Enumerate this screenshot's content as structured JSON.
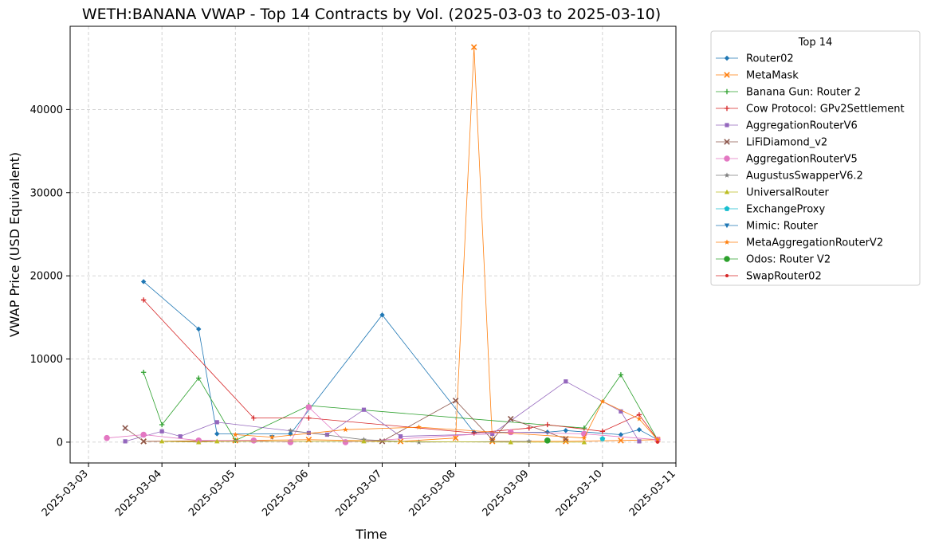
{
  "chart_data": {
    "type": "line",
    "title": "WETH:BANANA VWAP - Top 14 Contracts by Vol. (2025-03-03 to 2025-03-10)",
    "xlabel": "Time",
    "ylabel": "VWAP Price (USD Equivalent)",
    "xlim": [
      "2025-03-02 18:00",
      "2025-03-11 00:00"
    ],
    "ylim": [
      -2500,
      50000
    ],
    "yticks": [
      0,
      10000,
      20000,
      30000,
      40000
    ],
    "ytick_labels": [
      "0",
      "10000",
      "20000",
      "30000",
      "40000"
    ],
    "xticks": [
      "2025-03-03",
      "2025-03-04",
      "2025-03-05",
      "2025-03-06",
      "2025-03-07",
      "2025-03-08",
      "2025-03-09",
      "2025-03-10",
      "2025-03-11"
    ],
    "grid": true,
    "legend": {
      "title": "Top 14",
      "placement": "outside-top-right"
    },
    "series": [
      {
        "name": "Router02",
        "color": "#1f77b4",
        "marker": "diamond",
        "points": [
          [
            "2025-03-03 18:00",
            19300
          ],
          [
            "2025-03-04 12:00",
            13600
          ],
          [
            "2025-03-04 18:00",
            1000
          ],
          [
            "2025-03-05 18:00",
            1000
          ],
          [
            "2025-03-07 00:00",
            15300
          ],
          [
            "2025-03-08 06:00",
            1200
          ],
          [
            "2025-03-09 06:00",
            1200
          ],
          [
            "2025-03-09 12:00",
            1400
          ],
          [
            "2025-03-10 06:00",
            900
          ],
          [
            "2025-03-10 12:00",
            1500
          ],
          [
            "2025-03-10 18:00",
            300
          ]
        ]
      },
      {
        "name": "MetaMask",
        "color": "#ff7f0e",
        "marker": "x",
        "points": [
          [
            "2025-03-03 18:00",
            100
          ],
          [
            "2025-03-05 00:00",
            200
          ],
          [
            "2025-03-06 00:00",
            300
          ],
          [
            "2025-03-07 06:00",
            100
          ],
          [
            "2025-03-08 00:00",
            500
          ],
          [
            "2025-03-08 06:00",
            47500
          ],
          [
            "2025-03-08 12:00",
            100
          ],
          [
            "2025-03-09 12:00",
            100
          ],
          [
            "2025-03-10 06:00",
            200
          ],
          [
            "2025-03-10 18:00",
            300
          ]
        ]
      },
      {
        "name": "Banana Gun: Router 2",
        "color": "#2ca02c",
        "marker": "plus",
        "points": [
          [
            "2025-03-03 18:00",
            8400
          ],
          [
            "2025-03-04 00:00",
            2100
          ],
          [
            "2025-03-04 12:00",
            7700
          ],
          [
            "2025-03-05 00:00",
            200
          ],
          [
            "2025-03-06 00:00",
            4400
          ],
          [
            "2025-03-09 18:00",
            1700
          ],
          [
            "2025-03-10 06:00",
            8100
          ],
          [
            "2025-03-10 18:00",
            300
          ]
        ]
      },
      {
        "name": "Cow Protocol: GPv2Settlement",
        "color": "#d62728",
        "marker": "plus",
        "points": [
          [
            "2025-03-03 18:00",
            17100
          ],
          [
            "2025-03-05 06:00",
            2900
          ],
          [
            "2025-03-06 00:00",
            2900
          ],
          [
            "2025-03-08 06:00",
            1100
          ],
          [
            "2025-03-09 00:00",
            1700
          ],
          [
            "2025-03-09 06:00",
            2100
          ],
          [
            "2025-03-10 00:00",
            1300
          ],
          [
            "2025-03-10 12:00",
            3300
          ],
          [
            "2025-03-10 18:00",
            300
          ]
        ]
      },
      {
        "name": "AggregationRouterV6",
        "color": "#9467bd",
        "marker": "square",
        "points": [
          [
            "2025-03-03 12:00",
            100
          ],
          [
            "2025-03-04 00:00",
            1300
          ],
          [
            "2025-03-04 06:00",
            700
          ],
          [
            "2025-03-04 18:00",
            2400
          ],
          [
            "2025-03-06 00:00",
            1100
          ],
          [
            "2025-03-06 06:00",
            900
          ],
          [
            "2025-03-06 18:00",
            3900
          ],
          [
            "2025-03-07 06:00",
            700
          ],
          [
            "2025-03-08 12:00",
            1000
          ],
          [
            "2025-03-09 12:00",
            7300
          ],
          [
            "2025-03-10 06:00",
            3700
          ],
          [
            "2025-03-10 12:00",
            100
          ]
        ]
      },
      {
        "name": "LiFiDiamond_v2",
        "color": "#8c564b",
        "marker": "x",
        "points": [
          [
            "2025-03-03 12:00",
            1700
          ],
          [
            "2025-03-03 18:00",
            100
          ],
          [
            "2025-03-07 00:00",
            100
          ],
          [
            "2025-03-08 00:00",
            5000
          ],
          [
            "2025-03-08 12:00",
            300
          ],
          [
            "2025-03-08 18:00",
            2800
          ],
          [
            "2025-03-09 12:00",
            400
          ]
        ]
      },
      {
        "name": "AggregationRouterV5",
        "color": "#e377c2",
        "marker": "circle",
        "points": [
          [
            "2025-03-03 06:00",
            500
          ],
          [
            "2025-03-03 18:00",
            900
          ],
          [
            "2025-03-04 12:00",
            200
          ],
          [
            "2025-03-05 06:00",
            200
          ],
          [
            "2025-03-05 18:00",
            0
          ],
          [
            "2025-03-06 00:00",
            4200
          ],
          [
            "2025-03-06 12:00",
            0
          ],
          [
            "2025-03-08 18:00",
            1200
          ],
          [
            "2025-03-09 18:00",
            1000
          ],
          [
            "2025-03-10 18:00",
            300
          ]
        ]
      },
      {
        "name": "AugustusSwapperV6.2",
        "color": "#7f7f7f",
        "marker": "star",
        "points": [
          [
            "2025-03-05 18:00",
            1400
          ],
          [
            "2025-03-06 18:00",
            300
          ],
          [
            "2025-03-07 12:00",
            0
          ],
          [
            "2025-03-09 00:00",
            100
          ]
        ]
      },
      {
        "name": "UniversalRouter",
        "color": "#bcbd22",
        "marker": "triangle-up",
        "points": [
          [
            "2025-03-04 00:00",
            100
          ],
          [
            "2025-03-04 12:00",
            0
          ],
          [
            "2025-03-04 18:00",
            100
          ],
          [
            "2025-03-06 18:00",
            100
          ],
          [
            "2025-03-08 18:00",
            0
          ],
          [
            "2025-03-09 18:00",
            0
          ]
        ]
      },
      {
        "name": "ExchangeProxy",
        "color": "#17becf",
        "marker": "pentagon",
        "points": [
          [
            "2025-03-10 00:00",
            400
          ]
        ]
      },
      {
        "name": "Mimic: Router",
        "color": "#1f77b4",
        "marker": "triangle-down",
        "points": [
          [
            "2025-03-05 12:00",
            600
          ]
        ]
      },
      {
        "name": "MetaAggregationRouterV2",
        "color": "#ff7f0e",
        "marker": "star",
        "points": [
          [
            "2025-03-05 00:00",
            900
          ],
          [
            "2025-03-05 12:00",
            600
          ],
          [
            "2025-03-06 12:00",
            1500
          ],
          [
            "2025-03-07 12:00",
            1800
          ],
          [
            "2025-03-09 18:00",
            500
          ],
          [
            "2025-03-10 00:00",
            4900
          ],
          [
            "2025-03-10 12:00",
            2800
          ],
          [
            "2025-03-10 18:00",
            300
          ]
        ]
      },
      {
        "name": "Odos: Router V2",
        "color": "#2ca02c",
        "marker": "circle",
        "points": [
          [
            "2025-03-09 06:00",
            200
          ]
        ]
      },
      {
        "name": "SwapRouter02",
        "color": "#d62728",
        "marker": "dot",
        "points": [
          [
            "2025-03-10 18:00",
            0
          ]
        ]
      }
    ]
  }
}
